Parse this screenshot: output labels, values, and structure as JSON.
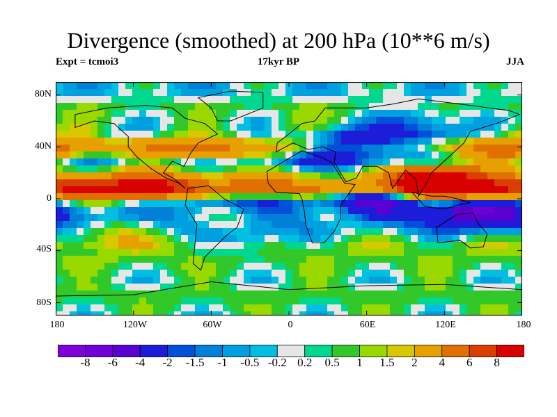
{
  "title": "Divergence (smoothed) at 200 hPa (10**6 m/s)",
  "subtitles": {
    "left": "Expt = tcmoi3",
    "center": "17kyr BP",
    "right": "JJA"
  },
  "axes": {
    "lat_labels": [
      "80N",
      "40N",
      "0",
      "40S",
      "80S"
    ],
    "lon_labels": [
      "180",
      "120W",
      "60W",
      "0",
      "60E",
      "120E",
      "180"
    ]
  },
  "colorbar": {
    "labels": [
      "-8",
      "-6",
      "-4",
      "-2",
      "-1.5",
      "-1",
      "-0.5",
      "-0.2",
      "0.2",
      "0.5",
      "1",
      "1.5",
      "2",
      "4",
      "6",
      "8"
    ],
    "colors": [
      "#7f00d9",
      "#7000d8",
      "#5a00d0",
      "#1c1cd9",
      "#0050d8",
      "#0080d8",
      "#00a0e0",
      "#00bfe0",
      "#e6e6e6",
      "#00d890",
      "#33c82a",
      "#99d900",
      "#d8c800",
      "#e6a000",
      "#e07000",
      "#d94000",
      "#d90000"
    ]
  },
  "map_fields": {
    "bands": [
      {
        "lat": 82,
        "value": -0.3
      },
      {
        "lat": 70,
        "value": 0.8
      },
      {
        "lat": 50,
        "value": -0.8
      },
      {
        "lat": 40,
        "value": 1.6
      },
      {
        "lat": 28,
        "value": -1.2
      },
      {
        "lat": 20,
        "value": 0.5
      },
      {
        "lat": 8,
        "value": 3.5
      },
      {
        "lat": -2,
        "value": -3.2
      },
      {
        "lat": -12,
        "value": -2.2
      },
      {
        "lat": -22,
        "value": -1.0
      },
      {
        "lat": -35,
        "value": 1.0
      },
      {
        "lat": -48,
        "value": 0.9
      },
      {
        "lat": -62,
        "value": 0.2
      },
      {
        "lat": -75,
        "value": 0.8
      },
      {
        "lat": -88,
        "value": 0.3
      }
    ],
    "blobs": [
      {
        "lon": -105,
        "lat": 8,
        "value": 7
      },
      {
        "lon": -150,
        "lat": 5,
        "value": 5
      },
      {
        "lon": -20,
        "lat": 8,
        "value": 3
      },
      {
        "lon": 100,
        "lat": 15,
        "value": 7
      },
      {
        "lon": 130,
        "lat": 10,
        "value": 6
      },
      {
        "lon": 160,
        "lat": 5,
        "value": 4.5
      },
      {
        "lon": 160,
        "lat": 35,
        "value": 3
      },
      {
        "lon": 150,
        "lat": -10,
        "value": -5
      },
      {
        "lon": 60,
        "lat": -5,
        "value": -3
      },
      {
        "lon": -100,
        "lat": 40,
        "value": 2
      },
      {
        "lon": -60,
        "lat": 40,
        "value": 3
      },
      {
        "lon": 40,
        "lat": 40,
        "value": -3
      },
      {
        "lon": 80,
        "lat": 40,
        "value": -2
      },
      {
        "lon": 40,
        "lat": -10,
        "value": 3
      },
      {
        "lon": -50,
        "lat": -15,
        "value": 2.5
      },
      {
        "lon": -170,
        "lat": 45,
        "value": 2.5
      },
      {
        "lon": -140,
        "lat": -25,
        "value": 2
      },
      {
        "lon": 10,
        "lat": 50,
        "value": 1.5
      },
      {
        "lon": 100,
        "lat": 60,
        "value": -1.5
      },
      {
        "lon": -30,
        "lat": -30,
        "value": -1.8
      }
    ],
    "continents": [
      {
        "name": "north-america",
        "points": [
          [
            -165,
            65
          ],
          [
            -140,
            70
          ],
          [
            -110,
            72
          ],
          [
            -90,
            70
          ],
          [
            -80,
            62
          ],
          [
            -65,
            58
          ],
          [
            -55,
            50
          ],
          [
            -70,
            43
          ],
          [
            -76,
            35
          ],
          [
            -81,
            25
          ],
          [
            -90,
            29
          ],
          [
            -97,
            20
          ],
          [
            -88,
            15
          ],
          [
            -80,
            8
          ],
          [
            -85,
            12
          ],
          [
            -95,
            16
          ],
          [
            -106,
            23
          ],
          [
            -117,
            32
          ],
          [
            -124,
            40
          ],
          [
            -124,
            48
          ],
          [
            -135,
            58
          ],
          [
            -150,
            60
          ],
          [
            -165,
            55
          ]
        ]
      },
      {
        "name": "south-america",
        "points": [
          [
            -78,
            8
          ],
          [
            -62,
            10
          ],
          [
            -50,
            0
          ],
          [
            -35,
            -8
          ],
          [
            -40,
            -22
          ],
          [
            -48,
            -28
          ],
          [
            -58,
            -38
          ],
          [
            -65,
            -45
          ],
          [
            -68,
            -55
          ],
          [
            -74,
            -50
          ],
          [
            -73,
            -40
          ],
          [
            -71,
            -20
          ],
          [
            -80,
            -5
          ]
        ]
      },
      {
        "name": "greenland",
        "points": [
          [
            -55,
            60
          ],
          [
            -45,
            60
          ],
          [
            -20,
            70
          ],
          [
            -20,
            82
          ],
          [
            -45,
            83
          ],
          [
            -70,
            78
          ],
          [
            -60,
            70
          ]
        ]
      },
      {
        "name": "eurasia",
        "points": [
          [
            -10,
            36
          ],
          [
            -9,
            43
          ],
          [
            0,
            50
          ],
          [
            5,
            54
          ],
          [
            10,
            58
          ],
          [
            20,
            60
          ],
          [
            28,
            70
          ],
          [
            60,
            70
          ],
          [
            80,
            73
          ],
          [
            100,
            77
          ],
          [
            140,
            72
          ],
          [
            170,
            68
          ],
          [
            178,
            65
          ],
          [
            160,
            58
          ],
          [
            140,
            52
          ],
          [
            135,
            43
          ],
          [
            121,
            30
          ],
          [
            110,
            20
          ],
          [
            105,
            10
          ],
          [
            100,
            2
          ],
          [
            98,
            15
          ],
          [
            90,
            22
          ],
          [
            80,
            8
          ],
          [
            77,
            20
          ],
          [
            68,
            25
          ],
          [
            57,
            25
          ],
          [
            52,
            16
          ],
          [
            44,
            13
          ],
          [
            35,
            28
          ],
          [
            36,
            36
          ],
          [
            26,
            40
          ],
          [
            15,
            38
          ],
          [
            3,
            43
          ]
        ]
      },
      {
        "name": "africa",
        "points": [
          [
            -17,
            21
          ],
          [
            -16,
            12
          ],
          [
            -10,
            5
          ],
          [
            8,
            4
          ],
          [
            10,
            0
          ],
          [
            12,
            -10
          ],
          [
            13,
            -20
          ],
          [
            18,
            -34
          ],
          [
            27,
            -34
          ],
          [
            35,
            -25
          ],
          [
            40,
            -15
          ],
          [
            40,
            -5
          ],
          [
            51,
            11
          ],
          [
            43,
            12
          ],
          [
            33,
            28
          ],
          [
            25,
            32
          ],
          [
            10,
            37
          ]
        ]
      },
      {
        "name": "australia",
        "points": [
          [
            114,
            -22
          ],
          [
            130,
            -12
          ],
          [
            142,
            -11
          ],
          [
            146,
            -19
          ],
          [
            153,
            -27
          ],
          [
            150,
            -37
          ],
          [
            140,
            -38
          ],
          [
            132,
            -32
          ],
          [
            115,
            -34
          ]
        ]
      },
      {
        "name": "antarctica",
        "points": [
          [
            -180,
            -75
          ],
          [
            -120,
            -74
          ],
          [
            -60,
            -64
          ],
          [
            0,
            -70
          ],
          [
            60,
            -67
          ],
          [
            120,
            -66
          ],
          [
            180,
            -70
          ],
          [
            180,
            -90
          ],
          [
            -180,
            -90
          ]
        ]
      },
      {
        "name": "indonesia",
        "points": [
          [
            95,
            5
          ],
          [
            105,
            -6
          ],
          [
            120,
            -8
          ],
          [
            130,
            -5
          ],
          [
            140,
            -3
          ],
          [
            130,
            0
          ],
          [
            120,
            2
          ],
          [
            110,
            2
          ]
        ]
      }
    ]
  }
}
